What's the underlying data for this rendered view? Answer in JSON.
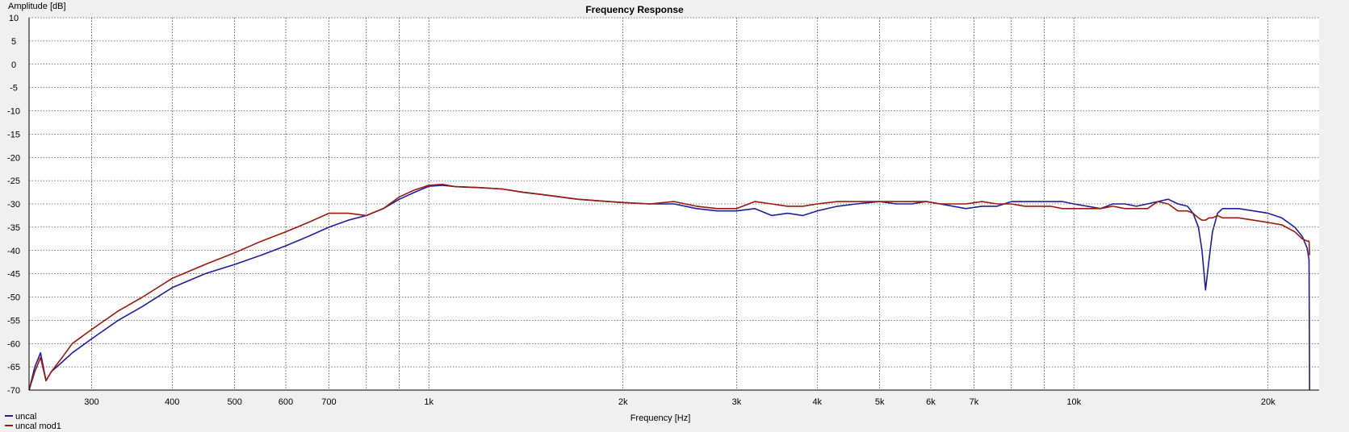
{
  "chart_data": {
    "type": "line",
    "title": "Frequency Response",
    "xlabel": "Frequency [Hz]",
    "ylabel": "Amplitude [dB]",
    "x_scale": "log",
    "xlim": [
      240,
      24000
    ],
    "ylim": [
      -70,
      10
    ],
    "grid": true,
    "legend_placement": "bottom-left",
    "x_ticks": [
      {
        "value": 300,
        "label": "300"
      },
      {
        "value": 400,
        "label": "400"
      },
      {
        "value": 500,
        "label": "500"
      },
      {
        "value": 600,
        "label": "600"
      },
      {
        "value": 700,
        "label": "700"
      },
      {
        "value": 1000,
        "label": "1k"
      },
      {
        "value": 2000,
        "label": "2k"
      },
      {
        "value": 3000,
        "label": "3k"
      },
      {
        "value": 4000,
        "label": "4k"
      },
      {
        "value": 5000,
        "label": "5k"
      },
      {
        "value": 6000,
        "label": "6k"
      },
      {
        "value": 7000,
        "label": "7k"
      },
      {
        "value": 10000,
        "label": "10k"
      },
      {
        "value": 20000,
        "label": "20k"
      }
    ],
    "x_minor_grid": [
      800,
      900,
      8000,
      9000
    ],
    "y_ticks": [
      10,
      5,
      0,
      -5,
      -10,
      -15,
      -20,
      -25,
      -30,
      -35,
      -40,
      -45,
      -50,
      -55,
      -60,
      -65,
      -70
    ],
    "series": [
      {
        "name": "uncal",
        "color": "#1f1f9a",
        "x": [
          240,
          245,
          250,
          255,
          260,
          270,
          280,
          300,
          330,
          360,
          400,
          450,
          500,
          550,
          600,
          650,
          700,
          750,
          800,
          850,
          900,
          950,
          1000,
          1050,
          1100,
          1200,
          1300,
          1400,
          1500,
          1700,
          1900,
          2000,
          2200,
          2400,
          2600,
          2800,
          3000,
          3200,
          3400,
          3600,
          3800,
          4000,
          4300,
          4600,
          5000,
          5300,
          5600,
          5900,
          6200,
          6500,
          6800,
          7200,
          7600,
          8000,
          8400,
          8800,
          9200,
          9600,
          10000,
          10500,
          11000,
          11500,
          12000,
          12500,
          13000,
          13500,
          14000,
          14500,
          15000,
          15300,
          15600,
          15800,
          16000,
          16200,
          16400,
          16700,
          17000,
          17500,
          18000,
          19000,
          20000,
          21000,
          22000,
          22600,
          23000,
          23150,
          23200
        ],
        "y": [
          -70,
          -65,
          -62,
          -68,
          -66,
          -64,
          -62,
          -59,
          -55,
          -52,
          -48,
          -45,
          -43,
          -41,
          -39,
          -37,
          -35,
          -33.5,
          -32.5,
          -31,
          -29,
          -27.5,
          -26.2,
          -26,
          -26.3,
          -26.5,
          -26.8,
          -27.5,
          -28,
          -29,
          -29.5,
          -29.7,
          -30,
          -30,
          -31,
          -31.5,
          -31.5,
          -31,
          -32.5,
          -32,
          -32.5,
          -31.5,
          -30.5,
          -30,
          -29.5,
          -30,
          -30,
          -29.5,
          -30,
          -30.5,
          -31,
          -30.5,
          -30.5,
          -29.5,
          -29.5,
          -29.5,
          -29.5,
          -29.5,
          -30,
          -30.5,
          -31,
          -30,
          -30,
          -30.5,
          -30,
          -29.5,
          -29,
          -30,
          -30.5,
          -32,
          -35,
          -40,
          -48.5,
          -42,
          -36,
          -32,
          -31,
          -31,
          -31,
          -31.5,
          -32,
          -33,
          -35,
          -37,
          -39.5,
          -42,
          -70
        ]
      },
      {
        "name": "uncal mod1",
        "color": "#9a1a10",
        "x": [
          240,
          245,
          250,
          255,
          260,
          270,
          280,
          300,
          330,
          360,
          400,
          450,
          500,
          550,
          600,
          650,
          700,
          750,
          800,
          850,
          900,
          950,
          1000,
          1050,
          1100,
          1200,
          1300,
          1400,
          1500,
          1700,
          1900,
          2000,
          2200,
          2400,
          2600,
          2800,
          3000,
          3200,
          3400,
          3600,
          3800,
          4000,
          4300,
          4600,
          5000,
          5300,
          5600,
          5900,
          6200,
          6500,
          6800,
          7200,
          7600,
          8000,
          8400,
          8800,
          9200,
          9600,
          10000,
          10500,
          11000,
          11500,
          12000,
          12500,
          13000,
          13500,
          14000,
          14500,
          15000,
          15300,
          15600,
          15800,
          16000,
          16200,
          16400,
          16700,
          17000,
          17500,
          18000,
          19000,
          20000,
          21000,
          22000,
          22600,
          23000,
          23150,
          23200
        ],
        "y": [
          -70,
          -66,
          -63,
          -68,
          -66,
          -63,
          -60,
          -57,
          -53,
          -50,
          -46,
          -43,
          -40.5,
          -38,
          -36,
          -34,
          -32,
          -32,
          -32.5,
          -31,
          -28.5,
          -27,
          -26,
          -25.8,
          -26.3,
          -26.5,
          -26.8,
          -27.5,
          -28,
          -29,
          -29.5,
          -29.7,
          -30,
          -29.5,
          -30.5,
          -31,
          -31,
          -29.5,
          -30,
          -30.5,
          -30.5,
          -30,
          -29.5,
          -29.5,
          -29.5,
          -29.5,
          -29.5,
          -29.5,
          -30,
          -30,
          -30,
          -29.5,
          -30,
          -30,
          -30.5,
          -30.5,
          -30.5,
          -31,
          -31,
          -31,
          -31,
          -30.5,
          -31,
          -31,
          -31,
          -29.5,
          -30,
          -31.5,
          -31.5,
          -32,
          -33,
          -33.5,
          -33.5,
          -33,
          -33,
          -32.5,
          -33,
          -33,
          -33,
          -33.5,
          -34,
          -34.5,
          -36,
          -37.5,
          -38,
          -38,
          -41
        ]
      }
    ]
  }
}
